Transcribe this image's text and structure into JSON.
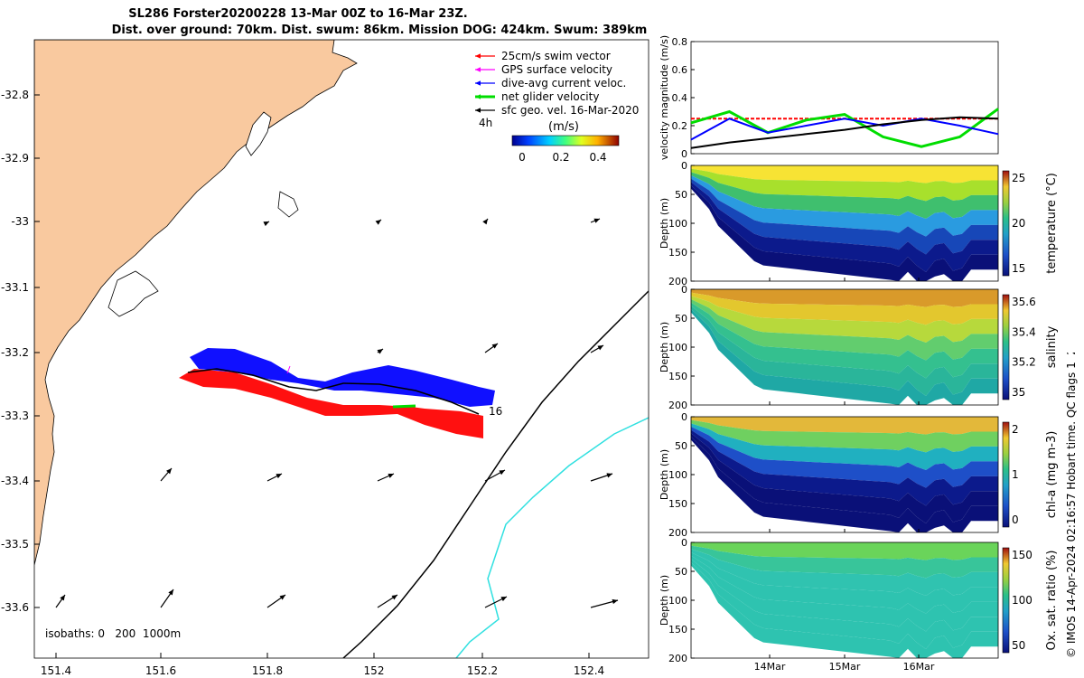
{
  "header": {
    "title_line1": "SL286 Forster20200228 13-Mar 00Z to 16-Mar 23Z.",
    "title_line2": "Dist. over ground: 70km. Dist. swum: 86km. Mission DOG: 424km. Swum: 389km"
  },
  "map": {
    "x_ticks": [
      "151.4",
      "151.6",
      "151.8",
      "152",
      "152.2",
      "152.4"
    ],
    "y_ticks": [
      "-32.8",
      "-32.9",
      "-33",
      "-33.1",
      "-33.2",
      "-33.3",
      "-33.4",
      "-33.5",
      "-33.6"
    ],
    "isobath_text": "isobaths: 0   200  1000m",
    "time_label": "16",
    "legend": {
      "items": [
        {
          "label": "25cm/s swim vector",
          "color": "#ff0000"
        },
        {
          "label": "GPS surface velocity",
          "color": "#ff00ff"
        },
        {
          "label": "dive-avg current veloc.",
          "color": "#0000ff"
        },
        {
          "label": "net glider velocity",
          "color": "#00dd00"
        },
        {
          "label": "sfc geo. vel. 16-Mar-2020",
          "color": "#000000"
        }
      ],
      "arrow_label": "4h",
      "colorbar_title": "(m/s)",
      "colorbar_ticks": [
        "0",
        "0.2",
        "0.4"
      ]
    }
  },
  "chart_data": [
    {
      "type": "line",
      "ylabel": "velocity magnitude (m/s)",
      "yticks": [
        "0",
        "0.2",
        "0.4",
        "0.6",
        "0.8"
      ],
      "ylim": [
        0,
        0.8
      ],
      "series": [
        {
          "color": "#ff0000",
          "values": [
            0.25,
            0.25,
            0.25,
            0.25,
            0.25,
            0.25,
            0.25,
            0.25,
            0.25
          ]
        },
        {
          "color": "#00dd00",
          "values": [
            0.22,
            0.3,
            0.15,
            0.24,
            0.28,
            0.12,
            0.05,
            0.12,
            0.32
          ]
        },
        {
          "color": "#0000ff",
          "values": [
            0.1,
            0.25,
            0.15,
            0.2,
            0.25,
            0.2,
            0.25,
            0.2,
            0.14
          ]
        },
        {
          "color": "#000000",
          "values": [
            0.04,
            0.08,
            0.11,
            0.14,
            0.17,
            0.21,
            0.24,
            0.26,
            0.25
          ]
        }
      ]
    },
    {
      "type": "heatmap",
      "ylabel": "Depth (m)",
      "cbar_label": "temperature (°C)",
      "cbar_ticks": [
        "15",
        "20",
        "25"
      ],
      "depth_ticks": [
        "0",
        "50",
        "100",
        "150",
        "200"
      ],
      "profile": [
        "#f7e334",
        "#a8e02c",
        "#3fbf6e",
        "#2a9be0",
        "#1747b8",
        "#0c1a8c",
        "#0a1078"
      ]
    },
    {
      "type": "heatmap",
      "ylabel": "Depth (m)",
      "cbar_label": "salinity",
      "cbar_ticks": [
        "35",
        "35.2",
        "35.4",
        "35.6"
      ],
      "depth_ticks": [
        "0",
        "50",
        "100",
        "150",
        "200"
      ],
      "profile": [
        "#d99a2a",
        "#e3c72e",
        "#b7d93c",
        "#62cd6e",
        "#34c08f",
        "#2ab59a",
        "#1fa8a5"
      ]
    },
    {
      "type": "heatmap",
      "ylabel": "Depth (m)",
      "cbar_label": "chl-a (mg m-3)",
      "cbar_ticks": [
        "0",
        "1",
        "2"
      ],
      "depth_ticks": [
        "0",
        "50",
        "100",
        "150",
        "200"
      ],
      "profile": [
        "#e3b83a",
        "#6fd060",
        "#20b0c0",
        "#1e4fc8",
        "#0c1a8c",
        "#0a1078",
        "#0a1078"
      ]
    },
    {
      "type": "heatmap",
      "ylabel": "Depth (m)",
      "cbar_label": "Ox. sat. ratio (%)",
      "cbar_ticks": [
        "50",
        "100",
        "150"
      ],
      "depth_ticks": [
        "0",
        "50",
        "100",
        "150",
        "200"
      ],
      "xticks": [
        "14Mar",
        "15Mar",
        "16Mar"
      ],
      "profile": [
        "#6ad45a",
        "#38c59a",
        "#30c3b0",
        "#2ec3b0",
        "#2ec3b0",
        "#2ec3b0",
        "#2ec3b0"
      ]
    }
  ],
  "stamp": "© IMOS 14-Apr-2024 02:16:57 Hobart time. QC flags 1  2"
}
